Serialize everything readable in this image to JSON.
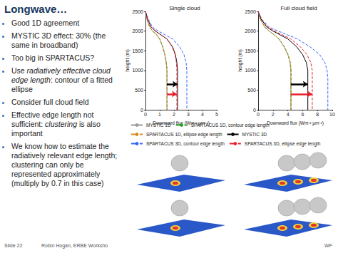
{
  "title": "Longwave…",
  "bullets": [
    [
      {
        "text": "Good 1D agreement"
      }
    ],
    [
      {
        "text": "MYSTIC 3D effect: 30% (the same in broadband)"
      }
    ],
    [
      {
        "text": "Too big in SPARTACUS?"
      }
    ],
    [
      {
        "text": "Use "
      },
      {
        "text": "radiatively effective cloud edge length",
        "italic": true
      },
      {
        "text": ": contour of a fitted ellipse"
      }
    ],
    [
      {
        "text": "Consider full cloud field"
      }
    ],
    [
      {
        "text": "Effective edge length not sufficient: "
      },
      {
        "text": "clustering",
        "italic": true
      },
      {
        "text": " is also important"
      }
    ],
    [
      {
        "text": "We know how to estimate the radiatively relevant edge length; clustering can only be represented approximately (multiply by 0.7 in this case)"
      }
    ]
  ],
  "footer": {
    "slide": "Slide 22",
    "author": "Robin Hogan, ERBE Worksho",
    "right": "WF"
  },
  "chart_data": [
    {
      "type": "line",
      "title": "Single cloud",
      "x_label": "Downward flux (Wm⁻² μm⁻¹)",
      "y_label": "height (m)",
      "xlim": [
        0,
        5
      ],
      "xticks": [
        0,
        1,
        2,
        3,
        4,
        5
      ],
      "ylim": [
        0,
        2500
      ],
      "yticks": [
        0,
        500,
        1000,
        1500,
        2000,
        2500
      ],
      "grid": false,
      "y": [
        2500,
        2300,
        2100,
        2000,
        1900,
        1800,
        1600,
        1400,
        1200,
        1000,
        800,
        0
      ],
      "series": [
        {
          "name": "MYSTIC 1D",
          "color": "#9a9a9a",
          "line_style": "solid",
          "values": [
            0,
            0.1,
            0.3,
            0.5,
            0.8,
            1.0,
            1.2,
            1.35,
            1.45,
            1.5,
            1.5,
            1.5
          ]
        },
        {
          "name": "SPARTACUS 1D, contour edge length",
          "color": "#2ca02c",
          "line_style": "dashed",
          "values": [
            0,
            0.1,
            0.3,
            0.5,
            0.8,
            1.0,
            1.22,
            1.37,
            1.47,
            1.52,
            1.52,
            1.52
          ]
        },
        {
          "name": "SPARTACUS 1D, ellipse edge length",
          "color": "#d98c1a",
          "line_style": "dashed",
          "values": [
            0,
            0.1,
            0.3,
            0.5,
            0.8,
            1.0,
            1.21,
            1.36,
            1.46,
            1.51,
            1.51,
            1.51
          ]
        },
        {
          "name": "MYSTIC 3D",
          "color": "#000000",
          "line_style": "solid",
          "values": [
            0,
            0.15,
            0.4,
            0.7,
            1.1,
            1.5,
            1.9,
            2.1,
            2.2,
            2.25,
            2.25,
            2.25
          ]
        },
        {
          "name": "SPARTACUS 3D, contour edge length",
          "color": "#3366ff",
          "line_style": "dashed",
          "values": [
            0,
            0.2,
            0.5,
            0.9,
            1.4,
            1.9,
            2.4,
            2.7,
            2.85,
            2.9,
            2.9,
            2.9
          ]
        },
        {
          "name": "SPARTACUS 3D, ellipse edge length",
          "color": "#e8202a",
          "line_style": "dashed",
          "values": [
            0,
            0.15,
            0.4,
            0.7,
            1.1,
            1.5,
            1.88,
            2.08,
            2.17,
            2.2,
            2.2,
            2.2
          ]
        }
      ],
      "arrows": [
        {
          "from": 1.5,
          "to": 2.25,
          "y": 650,
          "color": "#000000"
        },
        {
          "from": 1.5,
          "to": 2.2,
          "y": 400,
          "color": "#e8202a"
        }
      ]
    },
    {
      "type": "line",
      "title": "Full cloud field",
      "x_label": "Downward flux (Wm⁻² μm⁻¹)",
      "y_label": "height (m)",
      "xlim": [
        0,
        10
      ],
      "xticks": [
        0,
        2,
        4,
        6,
        8,
        10
      ],
      "ylim": [
        0,
        2500
      ],
      "yticks": [
        0,
        500,
        1000,
        1500,
        2000,
        2500
      ],
      "grid": false,
      "legend": "bottom",
      "y": [
        2500,
        2300,
        2100,
        2000,
        1900,
        1800,
        1600,
        1400,
        1200,
        1000,
        800,
        0
      ],
      "series": [
        {
          "name": "MYSTIC 1D",
          "color": "#9a9a9a",
          "line_style": "solid",
          "values": [
            0,
            0.3,
            0.9,
            1.5,
            2.2,
            2.8,
            3.5,
            4.0,
            4.3,
            4.4,
            4.4,
            4.4
          ]
        },
        {
          "name": "SPARTACUS 1D, contour edge length",
          "color": "#2ca02c",
          "line_style": "dashed",
          "values": [
            0,
            0.3,
            0.9,
            1.5,
            2.2,
            2.8,
            3.55,
            4.05,
            4.35,
            4.45,
            4.45,
            4.45
          ]
        },
        {
          "name": "SPARTACUS 1D, ellipse edge length",
          "color": "#d98c1a",
          "line_style": "dashed",
          "values": [
            0,
            0.3,
            0.9,
            1.5,
            2.2,
            2.8,
            3.52,
            4.02,
            4.32,
            4.42,
            4.42,
            4.42
          ]
        },
        {
          "name": "MYSTIC 3D",
          "color": "#000000",
          "line_style": "solid",
          "values": [
            0,
            0.4,
            1.2,
            2.0,
            3.0,
            4.0,
            5.2,
            6.0,
            6.5,
            6.7,
            6.7,
            6.7
          ]
        },
        {
          "name": "SPARTACUS 3D, contour edge length",
          "color": "#3366ff",
          "line_style": "dashed",
          "values": [
            0,
            0.5,
            1.5,
            2.7,
            4.0,
            5.3,
            7.0,
            8.3,
            9.0,
            9.3,
            9.4,
            9.4
          ]
        },
        {
          "name": "SPARTACUS 3D, ellipse edge length",
          "color": "#e8202a",
          "line_style": "dashed",
          "values": [
            0,
            0.45,
            1.3,
            2.2,
            3.3,
            4.4,
            5.7,
            6.6,
            7.1,
            7.3,
            7.3,
            7.3
          ]
        }
      ],
      "arrows": [
        {
          "from": 4.4,
          "to": 6.7,
          "y": 650,
          "color": "#000000"
        },
        {
          "from": 4.4,
          "to": 7.3,
          "y": 400,
          "color": "#e8202a"
        }
      ]
    }
  ]
}
